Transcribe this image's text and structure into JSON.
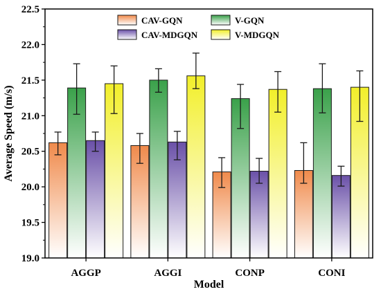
{
  "chart_data": {
    "type": "bar",
    "xlabel": "Model",
    "ylabel": "Average Speed (m/s)",
    "ylim": [
      19.0,
      22.5
    ],
    "yticks": [
      19.0,
      19.5,
      20.0,
      20.5,
      21.0,
      21.5,
      22.0,
      22.5
    ],
    "categories": [
      "AGGP",
      "AGGI",
      "CONP",
      "CONI"
    ],
    "grid": false,
    "legend_position": "top-center",
    "series": [
      {
        "name": "CAV-GQN",
        "color": "#f08a4b",
        "values": [
          20.62,
          20.58,
          20.21,
          20.23
        ],
        "error_low": [
          20.45,
          20.33,
          19.99,
          20.05
        ],
        "error_high": [
          20.77,
          20.75,
          20.41,
          20.62
        ]
      },
      {
        "name": "V-GQN",
        "color": "#3aa14a",
        "values": [
          21.39,
          21.5,
          21.24,
          21.38
        ],
        "error_low": [
          21.02,
          21.33,
          20.82,
          21.04
        ],
        "error_high": [
          21.73,
          21.66,
          21.44,
          21.73
        ]
      },
      {
        "name": "CAV-MDGQN",
        "color": "#6a50a8",
        "values": [
          20.65,
          20.63,
          20.22,
          20.16
        ],
        "error_low": [
          20.5,
          20.38,
          20.05,
          20.01
        ],
        "error_high": [
          20.77,
          20.78,
          20.4,
          20.29
        ]
      },
      {
        "name": "V-MDGQN",
        "color": "#f2ef2a",
        "values": [
          21.45,
          21.56,
          21.37,
          21.4
        ],
        "error_low": [
          21.03,
          21.38,
          21.05,
          20.92
        ],
        "error_high": [
          21.7,
          21.88,
          21.62,
          21.63
        ]
      }
    ]
  }
}
